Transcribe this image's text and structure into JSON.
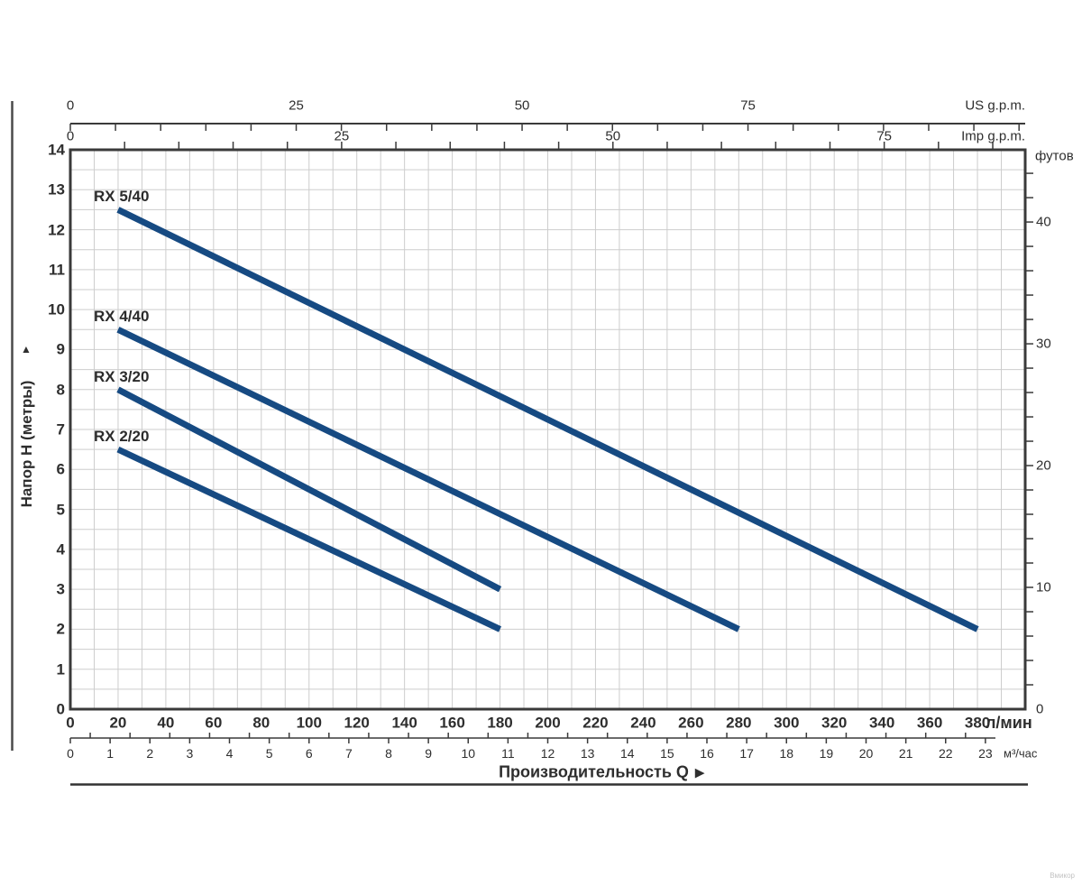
{
  "watermark": "Вмикор",
  "chart_data": {
    "type": "line",
    "title": "",
    "xlabel": "Производительность Q",
    "xlabel_arrow": "▶",
    "ylabel": "Напор H (метры)",
    "ylabel_arrow": "▲",
    "grid": true,
    "line_color": "#164a82",
    "grid_color": "#cdcdcd",
    "axis_color": "#3a3a3a",
    "x_axis_lpm": {
      "unit": "л/мин",
      "ticks": [
        0,
        20,
        40,
        60,
        80,
        100,
        120,
        140,
        160,
        180,
        200,
        220,
        240,
        260,
        280,
        300,
        320,
        340,
        360,
        380
      ],
      "xlim": [
        0,
        400
      ]
    },
    "x_axis_m3h": {
      "unit": "м³/час",
      "ticks": [
        0,
        1,
        2,
        3,
        4,
        5,
        6,
        7,
        8,
        9,
        10,
        11,
        12,
        13,
        14,
        15,
        16,
        17,
        18,
        19,
        20,
        21,
        22,
        23
      ],
      "lpm_per_unit": 16.6667,
      "minor_step": 0.5
    },
    "x_axis_us": {
      "unit": "US g.p.m.",
      "ticks": [
        0,
        25,
        50,
        75
      ],
      "lpm_per_unit": 3.785,
      "minor_step": 5
    },
    "x_axis_imp": {
      "unit": "Imp g.p.m.",
      "ticks": [
        0,
        25,
        50,
        75
      ],
      "lpm_per_unit": 4.546,
      "minor_step": 5
    },
    "y_axis_m": {
      "unit": "метры",
      "ticks": [
        0,
        1,
        2,
        3,
        4,
        5,
        6,
        7,
        8,
        9,
        10,
        11,
        12,
        13,
        14
      ],
      "ylim": [
        0,
        14
      ]
    },
    "y_axis_ft": {
      "unit": "футов",
      "ticks": [
        0,
        10,
        20,
        30,
        40
      ],
      "m_per_unit": 0.3048,
      "minor_step": 2,
      "minor_max": 44
    },
    "series": [
      {
        "name": "RX 5/40",
        "points": [
          [
            20,
            12.5
          ],
          [
            380,
            2
          ]
        ]
      },
      {
        "name": "RX 4/40",
        "points": [
          [
            20,
            9.5
          ],
          [
            280,
            2
          ]
        ]
      },
      {
        "name": "RX 3/20",
        "points": [
          [
            20,
            8
          ],
          [
            180,
            3
          ]
        ]
      },
      {
        "name": "RX 2/20",
        "points": [
          [
            20,
            6.5
          ],
          [
            180,
            2
          ]
        ]
      }
    ]
  }
}
